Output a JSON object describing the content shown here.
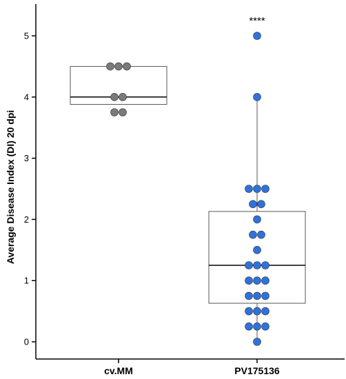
{
  "chart_data": {
    "type": "box",
    "ylabel": "Average Disease Index (DI) 20 dpi",
    "ylim": [
      -0.25,
      5.55
    ],
    "yticks": [
      0,
      1,
      2,
      3,
      4,
      5
    ],
    "grid": false,
    "categories": [
      "cv.MM",
      "PV175136"
    ],
    "boxes": [
      {
        "category": "cv.MM",
        "q1": 3.88,
        "median": 4.0,
        "q3": 4.5,
        "whisker_low": 3.88,
        "whisker_high": 4.5,
        "color": "#7a7a7a",
        "points": [
          4.5,
          4.5,
          4.5,
          4.0,
          4.0,
          3.75,
          3.75
        ]
      },
      {
        "category": "PV175136",
        "q1": 0.63,
        "median": 1.25,
        "q3": 2.13,
        "whisker_low": 0.0,
        "whisker_high": 4.0,
        "color": "#2f72dc",
        "points": [
          5.0,
          4.0,
          2.5,
          2.5,
          2.5,
          2.25,
          2.25,
          2.0,
          1.75,
          1.75,
          1.5,
          1.25,
          1.25,
          1.25,
          1.0,
          1.0,
          1.0,
          0.75,
          0.75,
          0.75,
          0.5,
          0.5,
          0.5,
          0.25,
          0.25,
          0.25,
          0.0
        ]
      }
    ],
    "annotations": [
      {
        "category": "PV175136",
        "text": "****",
        "y": 5.28
      }
    ]
  }
}
